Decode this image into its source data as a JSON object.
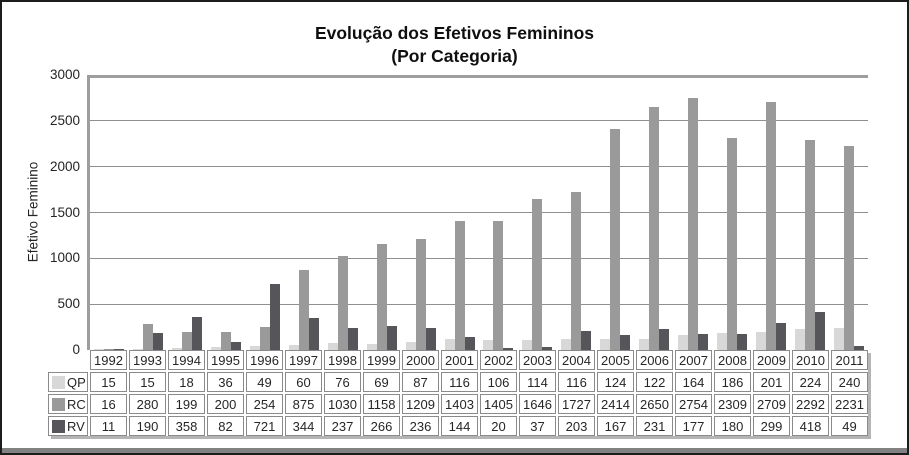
{
  "chart_data": {
    "type": "bar",
    "title": "Evolução dos Efetivos Femininos",
    "subtitle": "(Por Categoria)",
    "ylabel": "Efetivo Feminino",
    "ylim": [
      0,
      3000
    ],
    "yticks": [
      0,
      500,
      1000,
      1500,
      2000,
      2500,
      3000
    ],
    "grid": "horizontal",
    "legend_position": "data-table-left",
    "data_table_shown": true,
    "categories": [
      "1992",
      "1993",
      "1994",
      "1995",
      "1996",
      "1997",
      "1998",
      "1999",
      "2000",
      "2001",
      "2002",
      "2003",
      "2004",
      "2005",
      "2006",
      "2007",
      "2008",
      "2009",
      "2010",
      "2011"
    ],
    "series": [
      {
        "name": "QP",
        "color": "#d8d8d8",
        "values": [
          15,
          15,
          18,
          36,
          49,
          60,
          76,
          69,
          87,
          116,
          106,
          114,
          116,
          124,
          122,
          164,
          186,
          201,
          224,
          240
        ]
      },
      {
        "name": "RC",
        "color": "#9a9a9a",
        "values": [
          16,
          280,
          199,
          200,
          254,
          875,
          1030,
          1158,
          1209,
          1403,
          1405,
          1646,
          1727,
          2414,
          2650,
          2754,
          2309,
          2709,
          2292,
          2231
        ]
      },
      {
        "name": "RV",
        "color": "#56565a",
        "values": [
          11,
          190,
          358,
          82,
          721,
          344,
          237,
          266,
          236,
          144,
          20,
          37,
          203,
          167,
          231,
          177,
          180,
          299,
          418,
          49
        ]
      }
    ]
  },
  "colors": {
    "gridline": "#8f8f8f",
    "axis": "#9e9e9e",
    "table_border": "#8a8a8a",
    "table_shadow": "#b5b5b5",
    "frame": "#1c1c1c",
    "bottom_rule": "#828282",
    "text": "#242424"
  }
}
